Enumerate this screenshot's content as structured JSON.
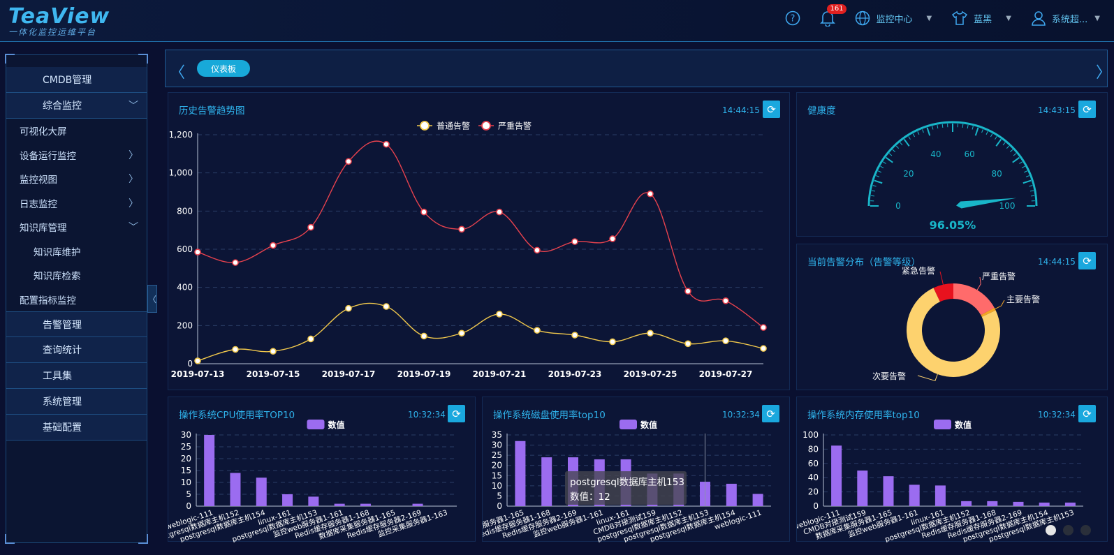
{
  "header": {
    "brand": "TeaView",
    "slogan": "一体化监控运维平台",
    "notification_count": "161",
    "monitor_center": "监控中心",
    "theme": "蓝黑",
    "user": "系统超..."
  },
  "sidebar": {
    "items": [
      {
        "label": "CMDB管理",
        "level": "top"
      },
      {
        "label": "综合监控",
        "level": "top",
        "expanded": true
      },
      {
        "label": "可视化大屏",
        "level": "sub"
      },
      {
        "label": "设备运行监控",
        "level": "sub",
        "has_children": true
      },
      {
        "label": "监控视图",
        "level": "sub",
        "has_children": true
      },
      {
        "label": "日志监控",
        "level": "sub",
        "has_children": true
      },
      {
        "label": "知识库管理",
        "level": "sub",
        "expanded": true
      },
      {
        "label": "知识库维护",
        "level": "sub2"
      },
      {
        "label": "知识库检索",
        "level": "sub2"
      },
      {
        "label": "配置指标监控",
        "level": "sub"
      },
      {
        "label": "告警管理",
        "level": "top"
      },
      {
        "label": "查询统计",
        "level": "top"
      },
      {
        "label": "工具集",
        "level": "top"
      },
      {
        "label": "系统管理",
        "level": "top"
      },
      {
        "label": "基础配置",
        "level": "top"
      }
    ]
  },
  "tabs": {
    "active": "仪表板"
  },
  "panels": {
    "trend": {
      "title": "历史告警趋势图",
      "time": "14:44:15"
    },
    "health": {
      "title": "健康度",
      "time": "14:43:15"
    },
    "dist": {
      "title": "当前告警分布（告警等级）",
      "time": "14:44:15"
    },
    "cpu": {
      "title": "操作系统CPU使用率TOP10",
      "time": "10:32:34"
    },
    "disk": {
      "title": "操作系统磁盘使用率top10",
      "time": "10:32:34"
    },
    "mem": {
      "title": "操作系统内存使用率top10",
      "time": "10:32:34"
    }
  },
  "colors": {
    "accent": "#1aa8de",
    "normal": "#f2c94c",
    "severe": "#e8424e",
    "bar": "#9b6cf0",
    "gauge": "#19b6c9"
  },
  "chart_data": [
    {
      "id": "trend",
      "type": "line",
      "x": [
        "2019-07-13",
        "2019-07-14",
        "2019-07-15",
        "2019-07-16",
        "2019-07-17",
        "2019-07-18",
        "2019-07-19",
        "2019-07-20",
        "2019-07-21",
        "2019-07-22",
        "2019-07-23",
        "2019-07-24",
        "2019-07-25",
        "2019-07-26",
        "2019-07-27",
        "2019-07-28"
      ],
      "x_tick_labels": [
        "2019-07-13",
        "2019-07-15",
        "2019-07-17",
        "2019-07-19",
        "2019-07-21",
        "2019-07-23",
        "2019-07-25",
        "2019-07-27"
      ],
      "series": [
        {
          "name": "普通告警",
          "values": [
            15,
            75,
            65,
            130,
            290,
            300,
            145,
            160,
            260,
            175,
            150,
            115,
            160,
            105,
            120,
            80
          ]
        },
        {
          "name": "严重告警",
          "values": [
            585,
            530,
            620,
            715,
            1060,
            1150,
            795,
            705,
            795,
            595,
            640,
            655,
            890,
            380,
            330,
            190
          ]
        }
      ],
      "ylim": [
        0,
        1200
      ],
      "y_ticks": [
        "0",
        "200",
        "400",
        "600",
        "800",
        "1,000",
        "1,200"
      ],
      "legend": "top-center",
      "grid": true
    },
    {
      "id": "health",
      "type": "gauge",
      "value": 96.05,
      "label": "96.05%",
      "range": [
        0,
        100
      ],
      "tick_labels": [
        "0",
        "20",
        "40",
        "60",
        "80",
        "100"
      ]
    },
    {
      "id": "dist",
      "type": "pie",
      "slices": [
        {
          "name": "次要告警",
          "value": 75
        },
        {
          "name": "主要告警",
          "value": 1
        },
        {
          "name": "严重告警",
          "value": 17
        },
        {
          "name": "紧急告警",
          "value": 7
        }
      ]
    },
    {
      "id": "cpu",
      "type": "bar",
      "legend": "数值",
      "categories": [
        "weblogic-111",
        "postgresql数据库主机152",
        "postgresql数据库主机154",
        "linux-161",
        "postgresql数据库主机153",
        "监控web服务器1-161",
        "Redis缓存服务器1-168",
        "数据库采集服务器1-165",
        "Redis缓存服务器2-169",
        "监控采集服务器1-163"
      ],
      "values": [
        30,
        14,
        12,
        5,
        4,
        1,
        1,
        0,
        1,
        0
      ],
      "ylim": [
        0,
        30
      ],
      "y_ticks": [
        "0",
        "5",
        "10",
        "15",
        "20",
        "25",
        "30"
      ]
    },
    {
      "id": "disk",
      "type": "bar",
      "legend": "数值",
      "categories": [
        "数据库采集服务器1-165",
        "Redis缓存服务器1-168",
        "Redis缓存服务器2-169",
        "监控web服务器1-161",
        "linux-161",
        "CMDB对接测试159",
        "postgresql数据库主机152",
        "postgresql数据库主机153",
        "postgresql数据库主机154",
        "weblogic-111"
      ],
      "values": [
        32,
        24,
        24,
        23,
        23,
        16,
        16,
        12,
        11,
        6
      ],
      "ylim": [
        0,
        35
      ],
      "y_ticks": [
        "0",
        "5",
        "10",
        "15",
        "20",
        "25",
        "30",
        "35"
      ],
      "tooltip": {
        "title": "postgresql数据库主机153",
        "text": "数值：12"
      }
    },
    {
      "id": "mem",
      "type": "bar",
      "legend": "数值",
      "categories": [
        "weblogic-111",
        "CMDB对接测试159",
        "数据库采集服务器1-165",
        "监控web服务器1-161",
        "linux-161",
        "postgresql数据库主机152",
        "Redis缓存服务器1-168",
        "Redis缓存服务器2-169",
        "postgresql数据库主机154",
        "postgresql数据库主机153"
      ],
      "values": [
        85,
        50,
        42,
        30,
        29,
        7,
        7,
        6,
        5,
        5
      ],
      "ylim": [
        0,
        100
      ],
      "y_ticks": [
        "0",
        "20",
        "40",
        "60",
        "80",
        "100"
      ]
    }
  ]
}
